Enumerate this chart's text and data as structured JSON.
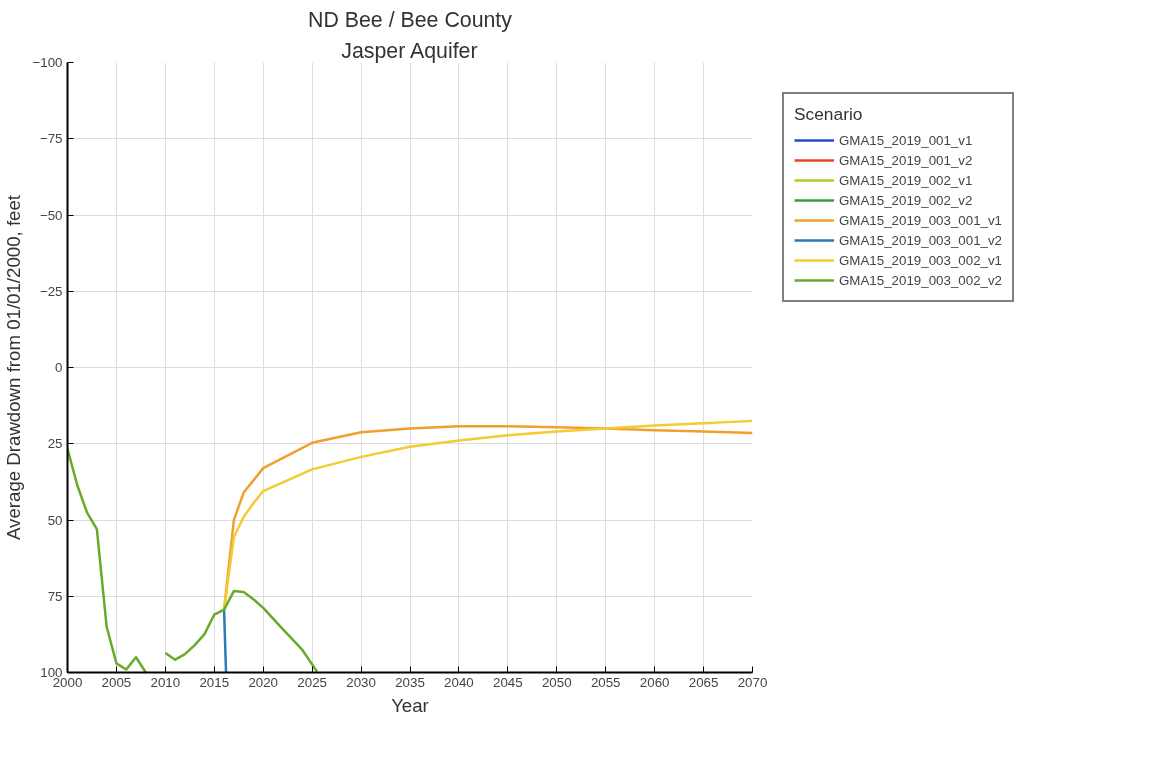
{
  "chart_data": {
    "type": "line",
    "title": "ND Bee / Bee County",
    "subtitle": "Jasper Aquifer",
    "xlabel": "Year",
    "ylabel": "Average Drawdown from 01/01/2000, feet",
    "legend_title": "Scenario",
    "xlim": [
      2000,
      2070
    ],
    "xticks": [
      2000,
      2005,
      2010,
      2015,
      2020,
      2025,
      2030,
      2035,
      2040,
      2045,
      2050,
      2055,
      2060,
      2065,
      2070
    ],
    "ylim": [
      100,
      -100
    ],
    "yticks": [
      -100,
      -75,
      -50,
      -25,
      0,
      25,
      50,
      75,
      100
    ],
    "grid": true,
    "legend": "right",
    "marker": "none",
    "line_style": "solid",
    "series": [
      {
        "name": "GMA15_2019_001_v1",
        "color": "#1f4fc4",
        "values": [
          null,
          null
        ]
      },
      {
        "name": "GMA15_2019_001_v2",
        "color": "#e8442a",
        "values": [
          null,
          null
        ]
      },
      {
        "name": "GMA15_2019_002_v1",
        "color": "#b5c92a",
        "values": [
          null,
          null
        ]
      },
      {
        "name": "GMA15_2019_002_v2",
        "color": "#3a9a4a",
        "values": [
          null,
          null
        ]
      },
      {
        "name": "GMA15_2019_003_001_v1",
        "color": "#f0a030",
        "x": [
          2016,
          2017,
          2018,
          2019,
          2020,
          2025,
          2030,
          2035,
          2040,
          2045,
          2050,
          2055,
          2060,
          2065,
          2070
        ],
        "values": [
          79.4,
          50,
          41,
          37,
          33,
          24.7,
          21.2,
          20,
          19.3,
          19.3,
          19.6,
          20,
          20.6,
          21,
          21.5
        ]
      },
      {
        "name": "GMA15_2019_003_001_v2",
        "color": "#2a7ab8",
        "x": [
          2016,
          2016.2
        ],
        "values": [
          79.4,
          100
        ]
      },
      {
        "name": "GMA15_2019_003_002_v1",
        "color": "#f2cc30",
        "x": [
          2016,
          2017,
          2018,
          2019,
          2020,
          2025,
          2030,
          2035,
          2040,
          2045,
          2050,
          2055,
          2060,
          2065,
          2070
        ],
        "values": [
          79.4,
          55.6,
          49,
          44.5,
          40.5,
          33.4,
          29.3,
          26,
          23.9,
          22.2,
          21,
          20,
          19,
          18.3,
          17.5
        ]
      },
      {
        "name": "GMA15_2019_003_002_v2",
        "color": "#6aaa2a",
        "x": [
          2000,
          2001,
          2002,
          2003,
          2004,
          2005,
          2006,
          2007,
          2008,
          2009,
          2010,
          2011,
          2012,
          2013,
          2014,
          2015,
          2016,
          2017,
          2018,
          2019,
          2020,
          2022,
          2024,
          2025.5
        ],
        "values": [
          26.7,
          38.6,
          47.6,
          53,
          85,
          97,
          99,
          95,
          100,
          null,
          93.6,
          95.8,
          94,
          91,
          87.4,
          81,
          79.4,
          73.3,
          73.6,
          76,
          78.8,
          85.8,
          92.6,
          99.7
        ]
      }
    ]
  }
}
